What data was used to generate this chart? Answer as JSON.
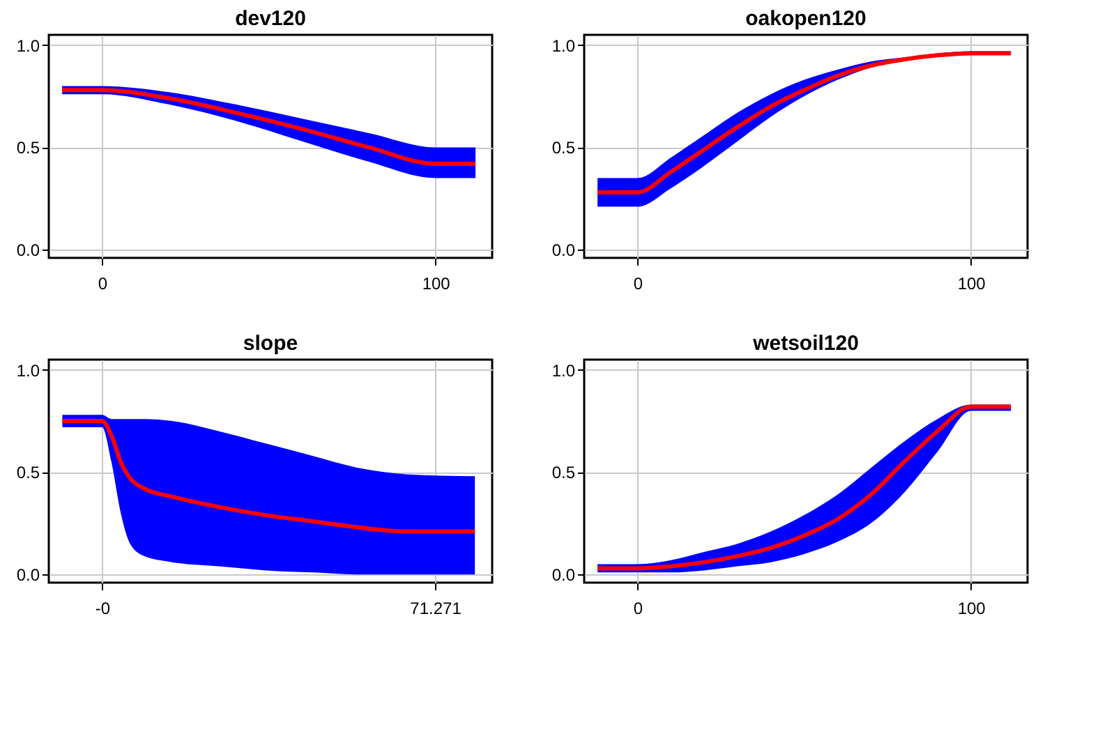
{
  "chart_data": [
    {
      "type": "line",
      "title": "dev120",
      "xlim": [
        -16,
        117
      ],
      "ylim": [
        -0.04,
        1.05
      ],
      "xticks": [
        0,
        100
      ],
      "yticks": [
        {
          "value": 0,
          "label": "0.0"
        },
        {
          "value": 0.5,
          "label": "0.5"
        },
        {
          "value": 1,
          "label": "1.0"
        }
      ],
      "grid": true,
      "x": [
        -12,
        0,
        20,
        40,
        60,
        80,
        100,
        112
      ],
      "series": [
        {
          "color": "#ff0000",
          "values": [
            0.78,
            0.78,
            0.74,
            0.67,
            0.59,
            0.5,
            0.42,
            0.42
          ],
          "lower": [
            0.76,
            0.76,
            0.71,
            0.63,
            0.53,
            0.43,
            0.35,
            0.35
          ],
          "upper": [
            0.8,
            0.8,
            0.77,
            0.71,
            0.64,
            0.57,
            0.5,
            0.5
          ]
        }
      ]
    },
    {
      "type": "line",
      "title": "oakopen120",
      "xlim": [
        -16,
        117
      ],
      "ylim": [
        -0.04,
        1.05
      ],
      "xticks": [
        0,
        100
      ],
      "yticks": [
        {
          "value": 0,
          "label": "0.0"
        },
        {
          "value": 0.5,
          "label": "0.5"
        },
        {
          "value": 1,
          "label": "1.0"
        }
      ],
      "grid": true,
      "x": [
        -12,
        0,
        10,
        20,
        30,
        40,
        50,
        60,
        70,
        80,
        90,
        100,
        112
      ],
      "series": [
        {
          "color": "#ff0000",
          "values": [
            0.28,
            0.28,
            0.38,
            0.49,
            0.6,
            0.7,
            0.78,
            0.85,
            0.9,
            0.93,
            0.95,
            0.96,
            0.96
          ],
          "lower": [
            0.21,
            0.21,
            0.3,
            0.41,
            0.53,
            0.65,
            0.75,
            0.83,
            0.89,
            0.93,
            0.95,
            0.96,
            0.96
          ],
          "upper": [
            0.35,
            0.35,
            0.45,
            0.56,
            0.67,
            0.76,
            0.83,
            0.88,
            0.92,
            0.94,
            0.96,
            0.97,
            0.97
          ]
        }
      ]
    },
    {
      "type": "line",
      "title": "slope",
      "xlim": [
        -11.4,
        83.5
      ],
      "ylim": [
        -0.04,
        1.05
      ],
      "xticks": [
        {
          "value": 0,
          "label": "-0"
        },
        71.271
      ],
      "yticks": [
        {
          "value": 0,
          "label": "0.0"
        },
        {
          "value": 0.5,
          "label": "0.5"
        },
        {
          "value": 1,
          "label": "1.0"
        }
      ],
      "grid": true,
      "x": [
        -8.5,
        0,
        2,
        4,
        6,
        9,
        15,
        25,
        35,
        45,
        55,
        65,
        79.8
      ],
      "series": [
        {
          "color": "#ff0000",
          "values": [
            0.75,
            0.75,
            0.68,
            0.55,
            0.47,
            0.42,
            0.38,
            0.33,
            0.29,
            0.26,
            0.23,
            0.21,
            0.21
          ],
          "lower": [
            0.72,
            0.72,
            0.55,
            0.3,
            0.15,
            0.09,
            0.06,
            0.04,
            0.02,
            0.01,
            0,
            0,
            0
          ],
          "upper": [
            0.78,
            0.78,
            0.76,
            0.76,
            0.76,
            0.76,
            0.75,
            0.7,
            0.64,
            0.58,
            0.52,
            0.49,
            0.48
          ]
        }
      ]
    },
    {
      "type": "line",
      "title": "wetsoil120",
      "xlim": [
        -16,
        117
      ],
      "ylim": [
        -0.04,
        1.05
      ],
      "xticks": [
        0,
        100
      ],
      "yticks": [
        {
          "value": 0,
          "label": "0.0"
        },
        {
          "value": 0.5,
          "label": "0.5"
        },
        {
          "value": 1,
          "label": "1.0"
        }
      ],
      "grid": true,
      "x": [
        -12,
        0,
        10,
        20,
        30,
        40,
        50,
        60,
        70,
        80,
        90,
        100,
        112
      ],
      "series": [
        {
          "color": "#ff0000",
          "values": [
            0.03,
            0.03,
            0.04,
            0.06,
            0.09,
            0.13,
            0.19,
            0.27,
            0.39,
            0.55,
            0.7,
            0.82,
            0.82
          ],
          "lower": [
            0.01,
            0.01,
            0.01,
            0.02,
            0.04,
            0.06,
            0.1,
            0.16,
            0.25,
            0.4,
            0.6,
            0.8,
            0.8
          ],
          "upper": [
            0.05,
            0.05,
            0.07,
            0.11,
            0.15,
            0.21,
            0.29,
            0.39,
            0.52,
            0.65,
            0.76,
            0.83,
            0.83
          ]
        }
      ]
    }
  ]
}
